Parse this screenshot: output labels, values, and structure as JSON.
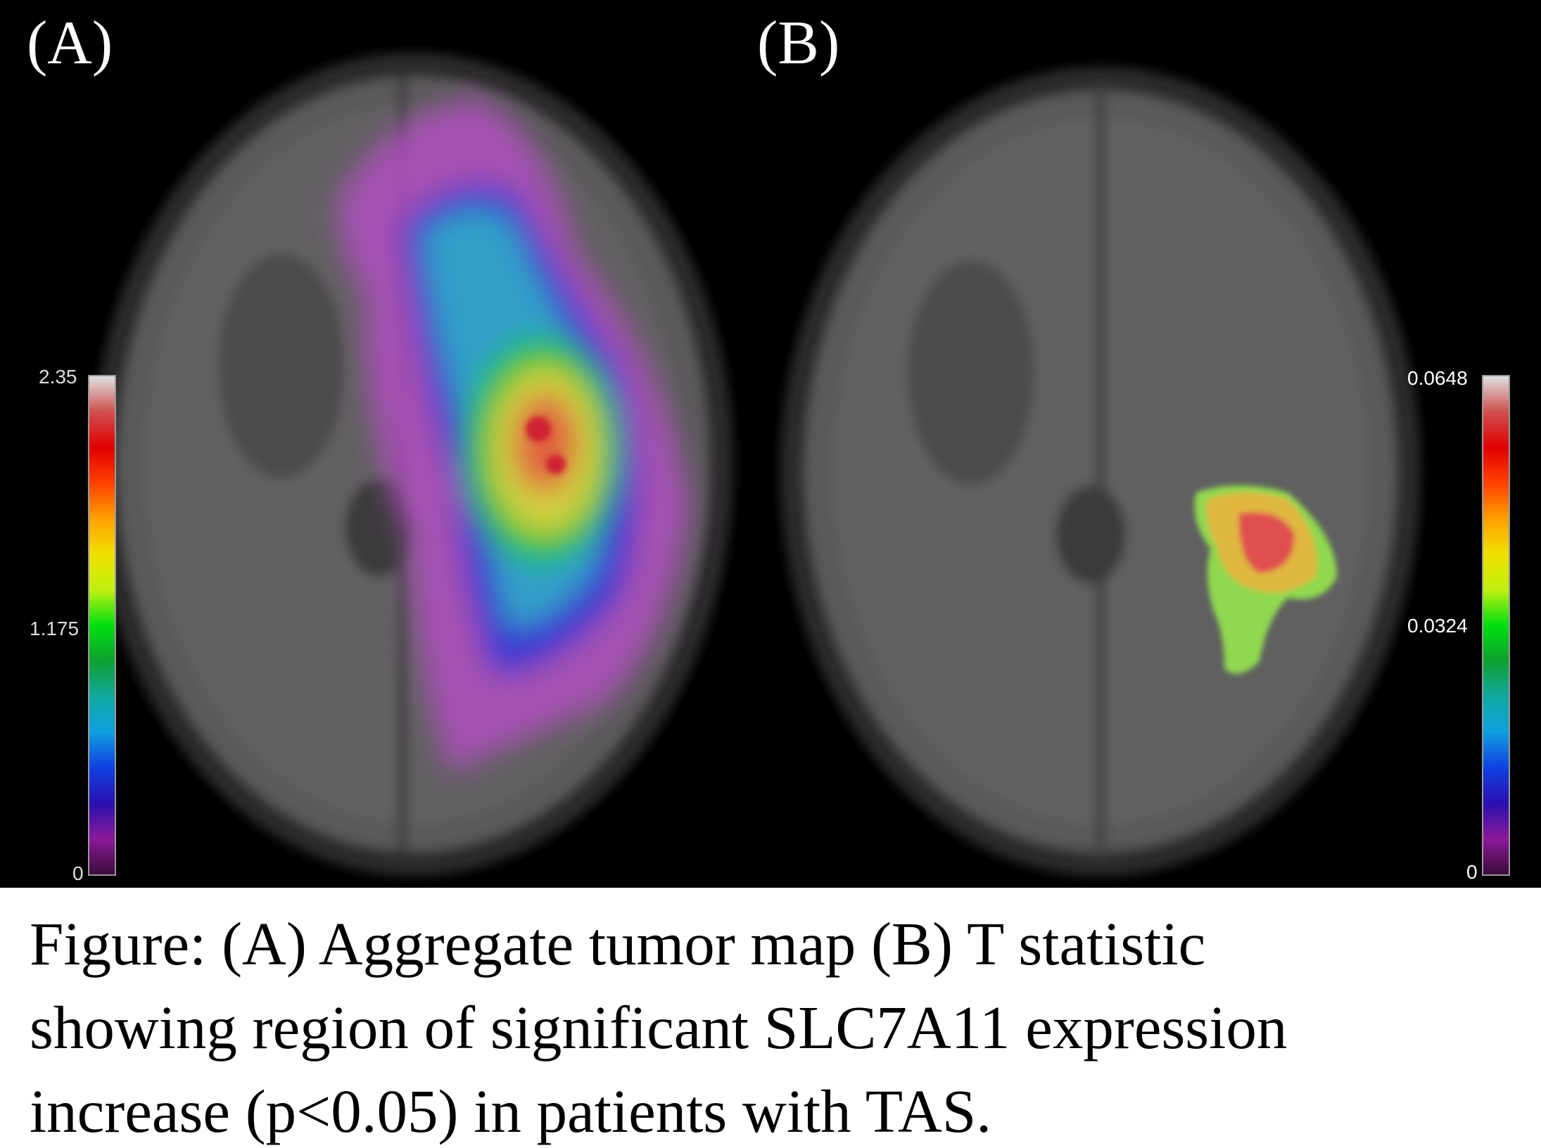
{
  "panels": [
    {
      "label": "(A)",
      "colorbar": {
        "max": "2.35",
        "mid": "1.175",
        "min": "0"
      }
    },
    {
      "label": "(B)",
      "colorbar": {
        "max": "0.0648",
        "mid": "0.0324",
        "min": "0"
      }
    }
  ],
  "colormap": [
    "#3a0a3a",
    "#8a1a9a",
    "#2a10b0",
    "#1040e0",
    "#10a0e0",
    "#10a8a0",
    "#10a030",
    "#00e010",
    "#c0f010",
    "#f0e000",
    "#ffa000",
    "#ff4000",
    "#e00000",
    "#d05050",
    "#e0e0e0"
  ],
  "caption": {
    "line1": "Figure: (A) Aggregate tumor map (B) T statistic",
    "line2": "showing region of significant SLC7A11 expression",
    "line3": "increase (p<0.05) in patients with TAS."
  }
}
